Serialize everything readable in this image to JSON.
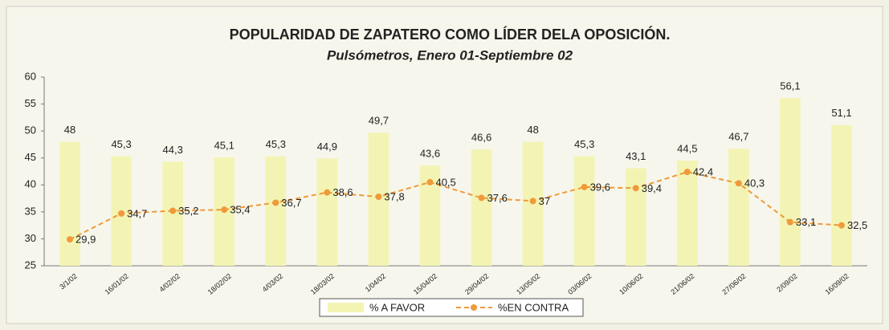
{
  "chart_data": {
    "type": "bar_line",
    "title": "POPULARIDAD DE ZAPATERO COMO LÍDER DELA OPOSICIÓN.",
    "subtitle": "Pulsómetros, Enero 01-Septiembre 02",
    "categories": [
      "3/1/02",
      "16/01/02",
      "4/02/02",
      "18/02/02",
      "4/03/02",
      "18/03/02",
      "1/04/02",
      "15/04/02",
      "29/04/02",
      "13/05/02",
      "03/06/02",
      "10/06/02",
      "21/06/02",
      "27/06/02",
      "2/09/02",
      "16/09/02"
    ],
    "series": [
      {
        "name": "% A FAVOR",
        "type": "bar",
        "color": "#f3f4b4",
        "values": [
          48,
          45.3,
          44.3,
          45.1,
          45.3,
          44.9,
          49.7,
          43.6,
          46.6,
          48,
          45.3,
          43.1,
          44.5,
          46.7,
          56.1,
          51.1
        ],
        "value_labels": [
          "48",
          "45,3",
          "44,3",
          "45,1",
          "45,3",
          "44,9",
          "49,7",
          "43,6",
          "46,6",
          "48",
          "45,3",
          "43,1",
          "44,5",
          "46,7",
          "56,1",
          "51,1"
        ]
      },
      {
        "name": "%EN CONTRA",
        "type": "line",
        "color": "#ef9a3a",
        "values": [
          29.9,
          34.7,
          35.2,
          35.4,
          36.7,
          38.6,
          37.8,
          40.5,
          37.6,
          37,
          39.6,
          39.4,
          42.4,
          40.3,
          33.1,
          32.5
        ],
        "value_labels": [
          "29,9",
          "34,7",
          "35,2",
          "35,4",
          "36,7",
          "38,6",
          "37,8",
          "40,5",
          "37,6",
          "37",
          "39,6",
          "39,4",
          "42,4",
          "40,3",
          "33,1",
          "32,5"
        ]
      }
    ],
    "ylim": [
      25,
      60
    ],
    "yticks": [
      25,
      30,
      35,
      40,
      45,
      50,
      55,
      60
    ],
    "grid": false,
    "legend": "bottom"
  }
}
